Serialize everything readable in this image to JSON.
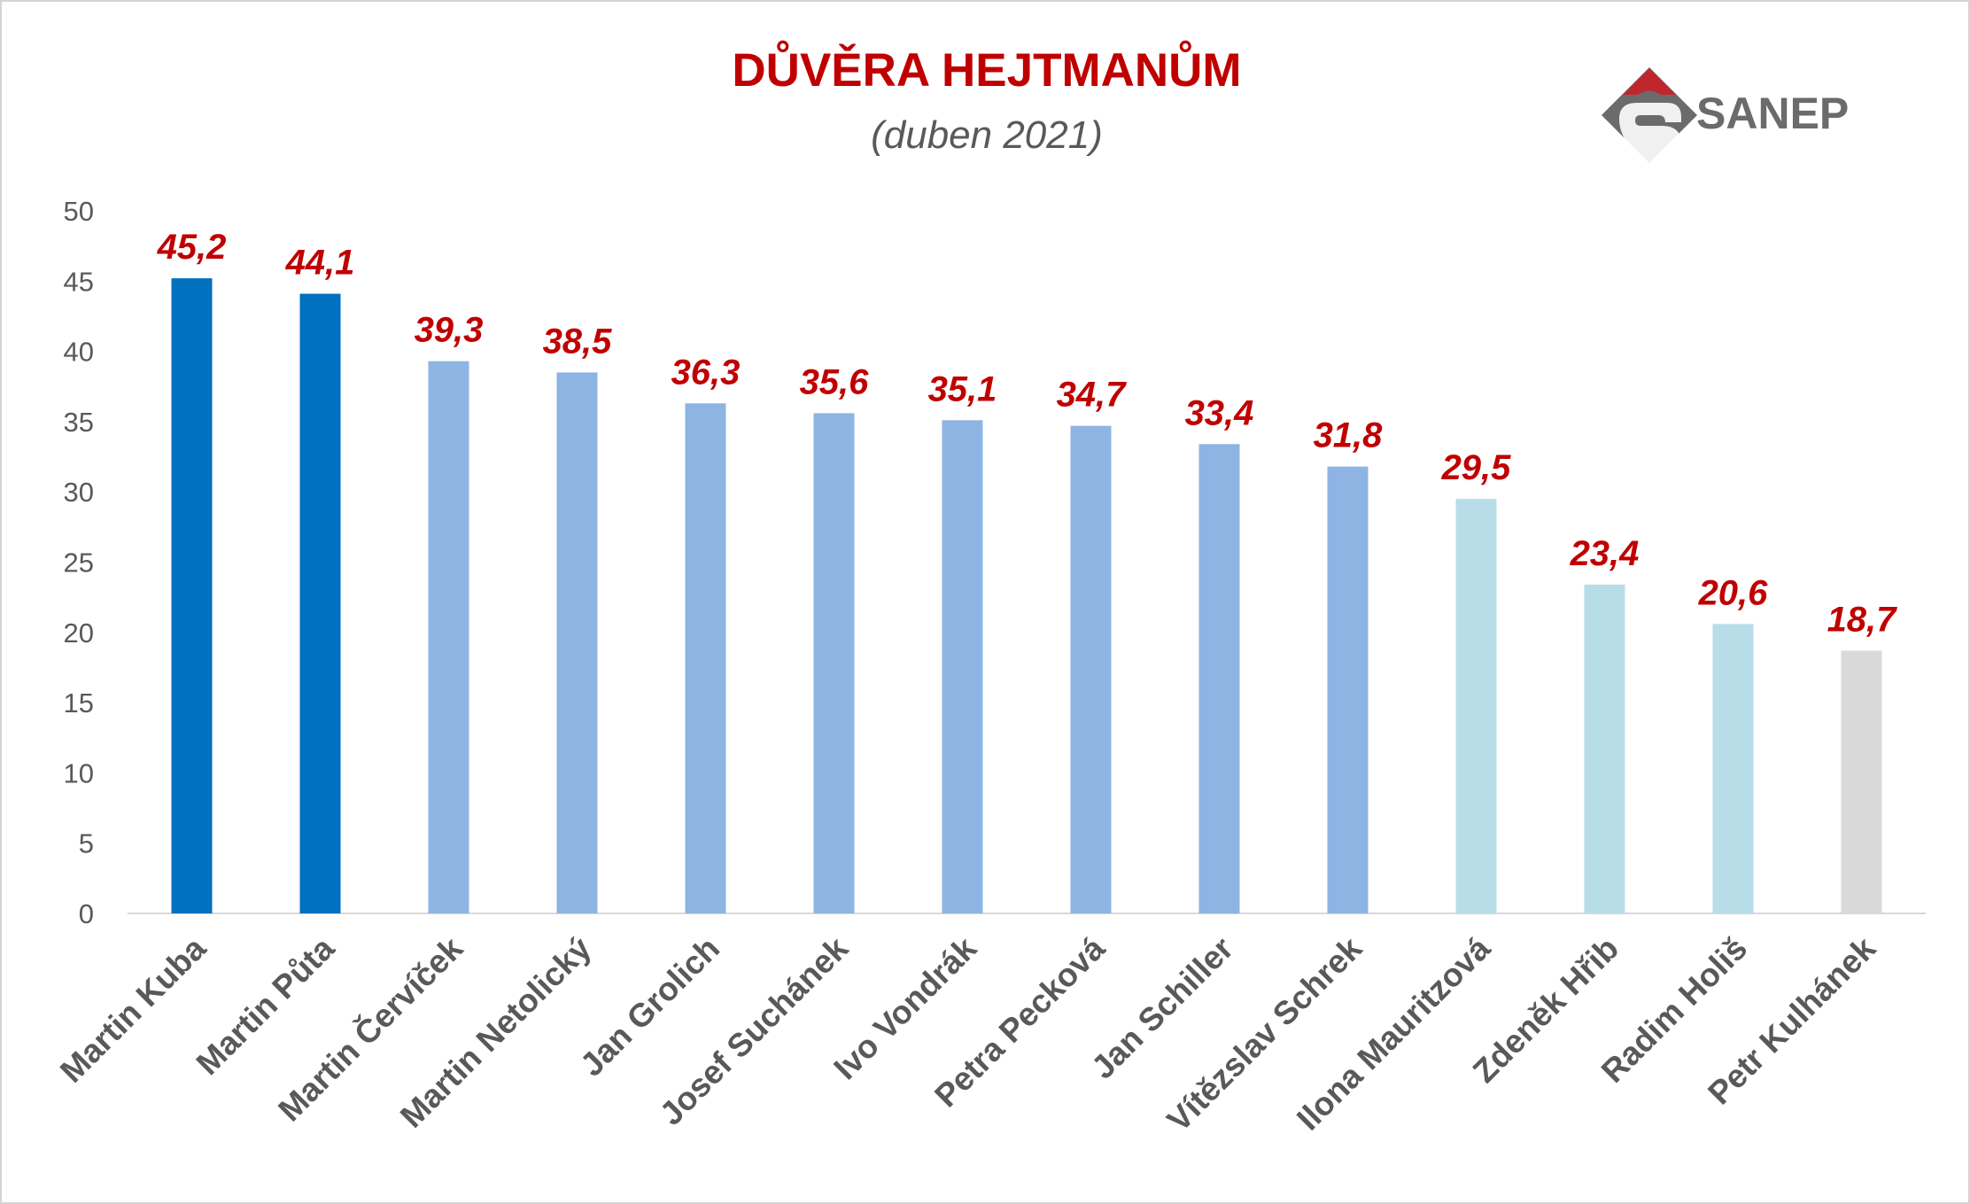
{
  "chart_data": {
    "type": "bar",
    "title": "DŮVĚRA HEJTMANŮM",
    "subtitle": "(duben 2021)",
    "categories": [
      "Martin Kuba",
      "Martin Půta",
      "Martin Červíček",
      "Martin Netolický",
      "Jan Grolich",
      "Josef Suchánek",
      "Ivo Vondrák",
      "Petra Pecková",
      "Jan Schiller",
      "Vítězslav Schrek",
      "Ilona Mauritzová",
      "Zdeněk Hřib",
      "Radim Holiš",
      "Petr Kulhánek"
    ],
    "values": [
      45.2,
      44.1,
      39.3,
      38.5,
      36.3,
      35.6,
      35.1,
      34.7,
      33.4,
      31.8,
      29.5,
      23.4,
      20.6,
      18.7
    ],
    "data_labels": [
      "45,2",
      "44,1",
      "39,3",
      "38,5",
      "36,3",
      "35,6",
      "35,1",
      "34,7",
      "33,4",
      "31,8",
      "29,5",
      "23,4",
      "20,6",
      "18,7"
    ],
    "bar_colors": [
      "#0070c0",
      "#0070c0",
      "#8eb4e3",
      "#8eb4e3",
      "#8eb4e3",
      "#8eb4e3",
      "#8eb4e3",
      "#8eb4e3",
      "#8eb4e3",
      "#8eb4e3",
      "#b7dde8",
      "#b7dde8",
      "#b7dde8",
      "#d9d9d9"
    ],
    "ylim": [
      0,
      50
    ],
    "yticks": [
      0,
      5,
      10,
      15,
      20,
      25,
      30,
      35,
      40,
      45,
      50
    ],
    "xlabel": "",
    "ylabel": "",
    "grid": false,
    "legend": "none"
  },
  "logo": {
    "text": "SANEP",
    "icon": "sanep-logo-icon",
    "colors": {
      "red": "#c0272d",
      "gray": "#6b6b6b"
    }
  },
  "colors": {
    "title": "#c00000",
    "data_label": "#c00000",
    "axis_text": "#595959",
    "axis_line": "#d9d9d9"
  }
}
